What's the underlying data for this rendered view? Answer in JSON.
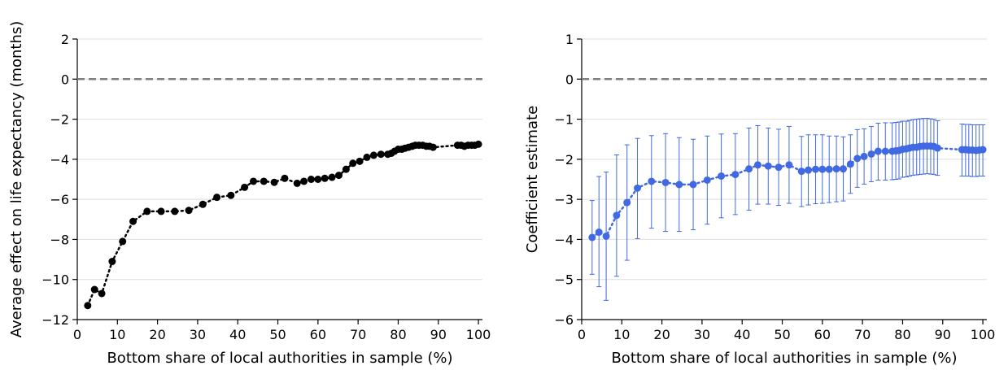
{
  "colors": {
    "left_series": "#000000",
    "right_series": "#4169e1",
    "zero_line": "#808080",
    "grid": "#dddddd"
  },
  "chart_data": [
    {
      "type": "scatter",
      "style": "dotted line with filled circular markers",
      "xlabel": "Bottom share of local authorities in sample (%)",
      "ylabel": "Average effect on life expectancy (months)",
      "xlim": [
        0,
        101
      ],
      "ylim": [
        -12,
        2
      ],
      "xticks": [
        "0",
        "10",
        "20",
        "30",
        "40",
        "50",
        "60",
        "70",
        "80",
        "90",
        "100"
      ],
      "yticks": [
        "2",
        "0",
        "−2",
        "−4",
        "−6",
        "−8",
        "−10",
        "−12"
      ],
      "grid": "horizontal",
      "reference_line": 0,
      "series": [
        {
          "x": [
            2.6,
            4.3,
            6.1,
            8.7,
            11.3,
            13.9,
            17.4,
            20.9,
            24.3,
            27.8,
            31.3,
            34.8,
            38.3,
            41.7,
            43.9,
            46.5,
            49.1,
            51.7,
            54.8,
            56.5,
            58.3,
            60.0,
            61.7,
            63.5,
            65.2,
            67.0,
            68.7,
            70.4,
            72.2,
            73.9,
            75.7,
            77.4,
            78.3,
            79.1,
            80.0,
            80.9,
            81.7,
            82.6,
            83.5,
            84.3,
            85.2,
            86.1,
            87.0,
            87.8,
            88.7,
            94.8,
            95.7,
            96.5,
            97.4,
            98.3,
            99.1,
            100.0
          ],
          "y": [
            -11.3,
            -10.5,
            -10.7,
            -9.1,
            -8.1,
            -7.1,
            -6.6,
            -6.6,
            -6.6,
            -6.55,
            -6.25,
            -5.9,
            -5.8,
            -5.4,
            -5.1,
            -5.1,
            -5.15,
            -4.95,
            -5.2,
            -5.1,
            -5.0,
            -5.0,
            -4.95,
            -4.9,
            -4.8,
            -4.5,
            -4.2,
            -4.1,
            -3.9,
            -3.8,
            -3.75,
            -3.75,
            -3.7,
            -3.6,
            -3.5,
            -3.5,
            -3.45,
            -3.4,
            -3.35,
            -3.3,
            -3.3,
            -3.3,
            -3.35,
            -3.35,
            -3.4,
            -3.3,
            -3.3,
            -3.35,
            -3.3,
            -3.3,
            -3.3,
            -3.25
          ]
        }
      ]
    },
    {
      "type": "scatter",
      "style": "dotted line with filled circular markers and vertical error bars",
      "xlabel": "Bottom share of local authorities in sample (%)",
      "ylabel": "Coefficient estimate",
      "xlim": [
        0,
        101
      ],
      "ylim": [
        -6,
        1
      ],
      "xticks": [
        "0",
        "10",
        "20",
        "30",
        "40",
        "50",
        "60",
        "70",
        "80",
        "90",
        "100"
      ],
      "yticks": [
        "1",
        "0",
        "−1",
        "−2",
        "−3",
        "−4",
        "−5",
        "−6"
      ],
      "grid": "horizontal",
      "reference_line": 0,
      "series": [
        {
          "x": [
            2.6,
            4.3,
            6.1,
            8.7,
            11.3,
            13.9,
            17.4,
            20.9,
            24.3,
            27.8,
            31.3,
            34.8,
            38.3,
            41.7,
            43.9,
            46.5,
            49.1,
            51.7,
            54.8,
            56.5,
            58.3,
            60.0,
            61.7,
            63.5,
            65.2,
            67.0,
            68.7,
            70.4,
            72.2,
            73.9,
            75.7,
            77.4,
            78.3,
            79.1,
            80.0,
            80.9,
            81.7,
            82.6,
            83.5,
            84.3,
            85.2,
            86.1,
            87.0,
            87.8,
            88.7,
            94.8,
            95.7,
            96.5,
            97.4,
            98.3,
            99.1,
            100.0
          ],
          "y": [
            -3.95,
            -3.82,
            -3.92,
            -3.4,
            -3.08,
            -2.72,
            -2.55,
            -2.58,
            -2.63,
            -2.63,
            -2.52,
            -2.42,
            -2.38,
            -2.24,
            -2.14,
            -2.17,
            -2.2,
            -2.14,
            -2.3,
            -2.27,
            -2.25,
            -2.25,
            -2.25,
            -2.24,
            -2.24,
            -2.12,
            -1.98,
            -1.93,
            -1.87,
            -1.8,
            -1.8,
            -1.8,
            -1.79,
            -1.78,
            -1.75,
            -1.74,
            -1.72,
            -1.7,
            -1.7,
            -1.68,
            -1.67,
            -1.67,
            -1.67,
            -1.68,
            -1.72,
            -1.76,
            -1.76,
            -1.77,
            -1.77,
            -1.78,
            -1.77,
            -1.76
          ],
          "lower": [
            -4.87,
            -5.18,
            -5.52,
            -4.92,
            -4.52,
            -3.98,
            -3.72,
            -3.8,
            -3.8,
            -3.76,
            -3.62,
            -3.46,
            -3.38,
            -3.27,
            -3.12,
            -3.12,
            -3.15,
            -3.1,
            -3.18,
            -3.14,
            -3.11,
            -3.1,
            -3.08,
            -3.06,
            -3.04,
            -2.85,
            -2.7,
            -2.62,
            -2.56,
            -2.52,
            -2.52,
            -2.51,
            -2.5,
            -2.49,
            -2.45,
            -2.44,
            -2.42,
            -2.4,
            -2.39,
            -2.38,
            -2.37,
            -2.36,
            -2.37,
            -2.38,
            -2.4,
            -2.42,
            -2.42,
            -2.42,
            -2.43,
            -2.43,
            -2.42,
            -2.42
          ],
          "upper": [
            -3.03,
            -2.43,
            -2.32,
            -1.89,
            -1.64,
            -1.48,
            -1.41,
            -1.36,
            -1.46,
            -1.5,
            -1.42,
            -1.37,
            -1.36,
            -1.22,
            -1.16,
            -1.22,
            -1.25,
            -1.18,
            -1.43,
            -1.39,
            -1.39,
            -1.39,
            -1.42,
            -1.42,
            -1.44,
            -1.39,
            -1.26,
            -1.24,
            -1.18,
            -1.1,
            -1.09,
            -1.09,
            -1.08,
            -1.07,
            -1.05,
            -1.05,
            -1.03,
            -1.01,
            -1.0,
            -0.99,
            -0.98,
            -0.98,
            -0.99,
            -1.0,
            -1.04,
            -1.12,
            -1.13,
            -1.13,
            -1.14,
            -1.14,
            -1.14,
            -1.14
          ]
        }
      ]
    }
  ]
}
